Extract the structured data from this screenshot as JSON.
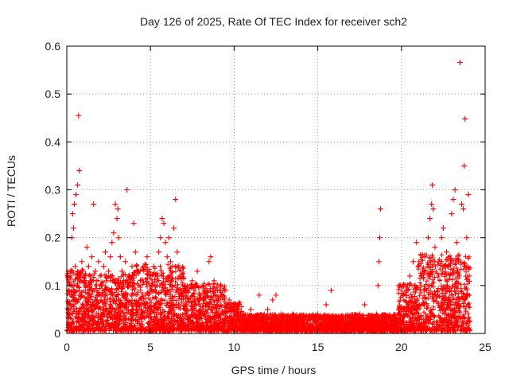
{
  "chart_data": {
    "type": "scatter",
    "title": "Day 126 of 2025, Rate Of TEC Index for receiver sch2",
    "xlabel": "GPS time / hours",
    "ylabel": "ROTI / TECUs",
    "xlim": [
      0,
      25
    ],
    "ylim": [
      0,
      0.6
    ],
    "xticks": [
      0,
      5,
      10,
      15,
      20,
      25
    ],
    "xtick_labels": [
      "0",
      "5",
      "10",
      "15",
      "20",
      "25"
    ],
    "yticks": [
      0,
      0.1,
      0.2,
      0.3,
      0.4,
      0.5,
      0.6
    ],
    "ytick_labels": [
      "0",
      "0.1",
      "0.2",
      "0.3",
      "0.4",
      "0.5",
      "0.6"
    ],
    "grid": true,
    "marker": "+",
    "marker_color": "#ff0000",
    "series": [
      {
        "name": "ROTI",
        "points": [
          [
            0.1,
            0.09
          ],
          [
            0.2,
            0.12
          ],
          [
            0.3,
            0.2
          ],
          [
            0.35,
            0.25
          ],
          [
            0.4,
            0.22
          ],
          [
            0.45,
            0.27
          ],
          [
            0.5,
            0.14
          ],
          [
            0.55,
            0.29
          ],
          [
            0.6,
            0.1
          ],
          [
            0.65,
            0.31
          ],
          [
            0.7,
            0.455
          ],
          [
            0.75,
            0.34
          ],
          [
            0.8,
            0.08
          ],
          [
            0.9,
            0.15
          ],
          [
            1.0,
            0.12
          ],
          [
            1.1,
            0.1
          ],
          [
            1.2,
            0.18
          ],
          [
            1.3,
            0.14
          ],
          [
            1.4,
            0.11
          ],
          [
            1.5,
            0.16
          ],
          [
            1.6,
            0.27
          ],
          [
            1.7,
            0.13
          ],
          [
            1.8,
            0.09
          ],
          [
            1.9,
            0.15
          ],
          [
            2.0,
            0.12
          ],
          [
            2.1,
            0.1
          ],
          [
            2.2,
            0.14
          ],
          [
            2.3,
            0.17
          ],
          [
            2.4,
            0.11
          ],
          [
            2.5,
            0.13
          ],
          [
            2.6,
            0.16
          ],
          [
            2.7,
            0.19
          ],
          [
            2.8,
            0.21
          ],
          [
            2.9,
            0.27
          ],
          [
            3.0,
            0.24
          ],
          [
            3.05,
            0.26
          ],
          [
            3.1,
            0.2
          ],
          [
            3.2,
            0.16
          ],
          [
            3.3,
            0.13
          ],
          [
            3.4,
            0.11
          ],
          [
            3.5,
            0.15
          ],
          [
            3.6,
            0.3
          ],
          [
            3.7,
            0.12
          ],
          [
            3.8,
            0.1
          ],
          [
            3.9,
            0.14
          ],
          [
            4.0,
            0.23
          ],
          [
            4.1,
            0.17
          ],
          [
            4.2,
            0.13
          ],
          [
            4.4,
            0.11
          ],
          [
            4.6,
            0.14
          ],
          [
            4.8,
            0.16
          ],
          [
            5.0,
            0.12
          ],
          [
            5.2,
            0.14
          ],
          [
            5.4,
            0.1
          ],
          [
            5.5,
            0.17
          ],
          [
            5.6,
            0.2
          ],
          [
            5.7,
            0.24
          ],
          [
            5.8,
            0.23
          ],
          [
            5.9,
            0.19
          ],
          [
            6.0,
            0.16
          ],
          [
            6.1,
            0.2
          ],
          [
            6.2,
            0.15
          ],
          [
            6.4,
            0.22
          ],
          [
            6.5,
            0.28
          ],
          [
            6.6,
            0.17
          ],
          [
            6.8,
            0.12
          ],
          [
            7.0,
            0.1
          ],
          [
            7.2,
            0.09
          ],
          [
            7.5,
            0.11
          ],
          [
            7.8,
            0.13
          ],
          [
            8.0,
            0.08
          ],
          [
            8.2,
            0.1
          ],
          [
            8.5,
            0.15
          ],
          [
            8.6,
            0.16
          ],
          [
            8.8,
            0.11
          ],
          [
            9.0,
            0.09
          ],
          [
            9.2,
            0.1
          ],
          [
            9.5,
            0.09
          ],
          [
            9.7,
            0.07
          ],
          [
            10.0,
            0.05
          ],
          [
            10.3,
            0.06
          ],
          [
            10.6,
            0.04
          ],
          [
            11.0,
            0.05
          ],
          [
            11.3,
            0.03
          ],
          [
            11.5,
            0.08
          ],
          [
            11.8,
            0.04
          ],
          [
            12.0,
            0.05
          ],
          [
            12.3,
            0.07
          ],
          [
            12.5,
            0.08
          ],
          [
            12.8,
            0.04
          ],
          [
            13.0,
            0.03
          ],
          [
            13.5,
            0.04
          ],
          [
            14.0,
            0.03
          ],
          [
            14.5,
            0.03
          ],
          [
            15.0,
            0.04
          ],
          [
            15.5,
            0.06
          ],
          [
            15.8,
            0.09
          ],
          [
            16.0,
            0.03
          ],
          [
            16.5,
            0.03
          ],
          [
            17.0,
            0.03
          ],
          [
            17.5,
            0.04
          ],
          [
            17.8,
            0.06
          ],
          [
            18.0,
            0.03
          ],
          [
            18.5,
            0.04
          ],
          [
            18.6,
            0.1
          ],
          [
            18.65,
            0.15
          ],
          [
            18.7,
            0.2
          ],
          [
            18.75,
            0.26
          ],
          [
            19.0,
            0.03
          ],
          [
            19.5,
            0.03
          ],
          [
            19.8,
            0.04
          ],
          [
            20.0,
            0.05
          ],
          [
            20.3,
            0.08
          ],
          [
            20.5,
            0.12
          ],
          [
            20.7,
            0.15
          ],
          [
            20.9,
            0.19
          ],
          [
            21.0,
            0.14
          ],
          [
            21.2,
            0.12
          ],
          [
            21.4,
            0.16
          ],
          [
            21.6,
            0.2
          ],
          [
            21.7,
            0.24
          ],
          [
            21.8,
            0.27
          ],
          [
            21.85,
            0.31
          ],
          [
            21.9,
            0.26
          ],
          [
            22.0,
            0.18
          ],
          [
            22.2,
            0.15
          ],
          [
            22.4,
            0.2
          ],
          [
            22.5,
            0.22
          ],
          [
            22.7,
            0.17
          ],
          [
            22.8,
            0.14
          ],
          [
            23.0,
            0.25
          ],
          [
            23.1,
            0.28
          ],
          [
            23.2,
            0.3
          ],
          [
            23.3,
            0.19
          ],
          [
            23.4,
            0.15
          ],
          [
            23.5,
            0.566
          ],
          [
            23.6,
            0.27
          ],
          [
            23.7,
            0.26
          ],
          [
            23.75,
            0.35
          ],
          [
            23.8,
            0.448
          ],
          [
            23.9,
            0.2
          ],
          [
            24.0,
            0.29
          ],
          [
            24.05,
            0.12
          ]
        ]
      }
    ]
  }
}
